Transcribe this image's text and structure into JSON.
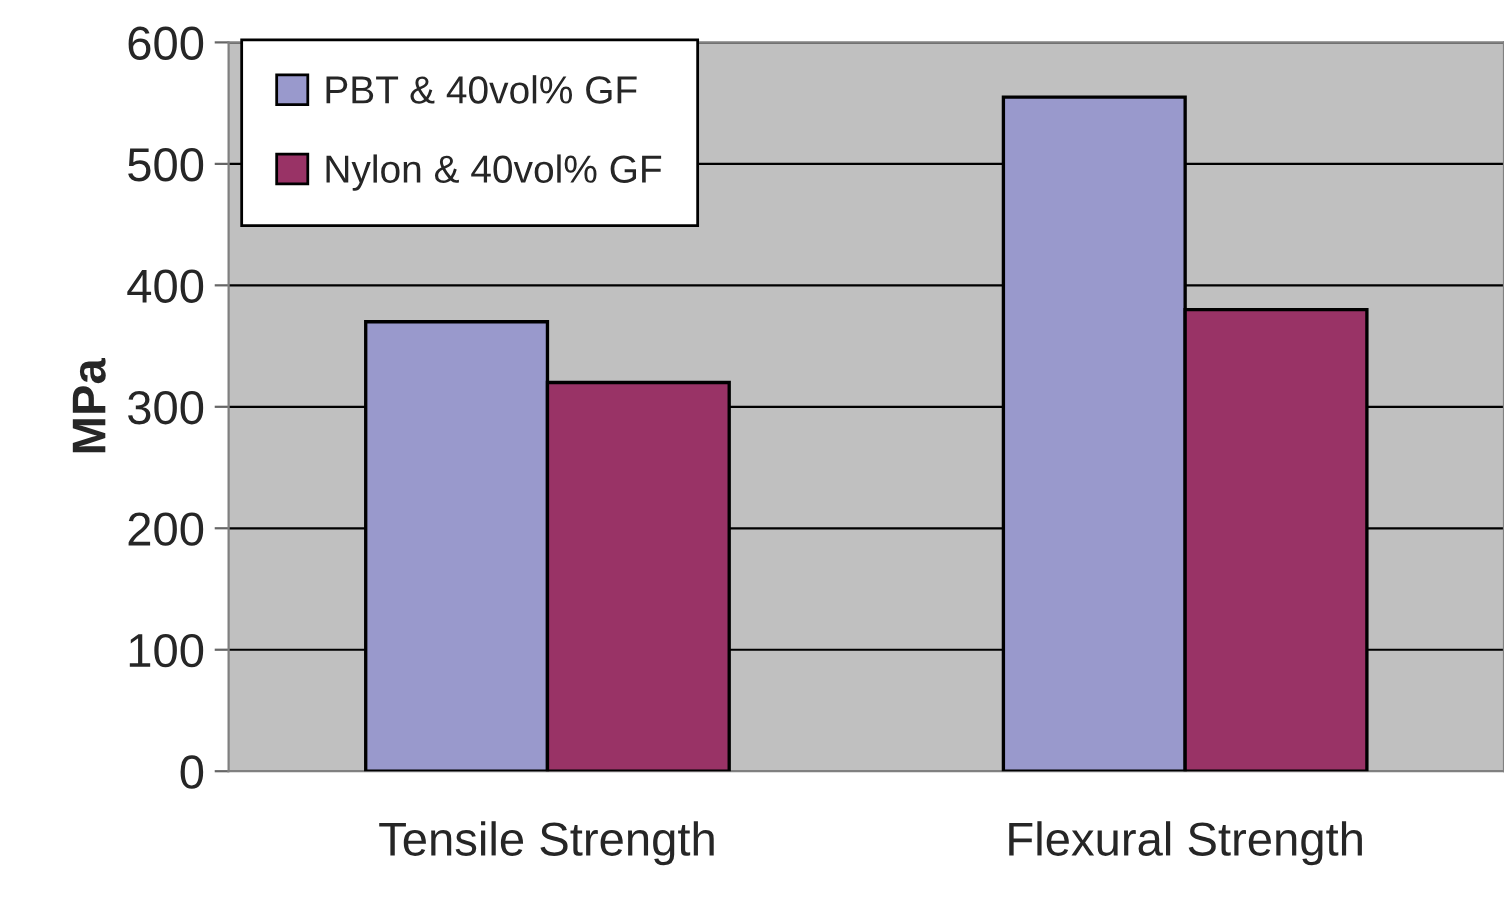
{
  "chart_data": {
    "type": "bar",
    "ylabel": "MPa",
    "categories": [
      "Tensile Strength",
      "Flexural Strength"
    ],
    "series": [
      {
        "name": "PBT & 40vol% GF",
        "color": "#9999cc",
        "values": [
          370,
          555
        ]
      },
      {
        "name": "Nylon & 40vol% GF",
        "color": "#993366",
        "values": [
          320,
          380
        ]
      }
    ],
    "ylim": [
      0,
      600
    ],
    "yticks": [
      0,
      100,
      200,
      300,
      400,
      500,
      600
    ],
    "grid": "y",
    "legend": "top left"
  }
}
